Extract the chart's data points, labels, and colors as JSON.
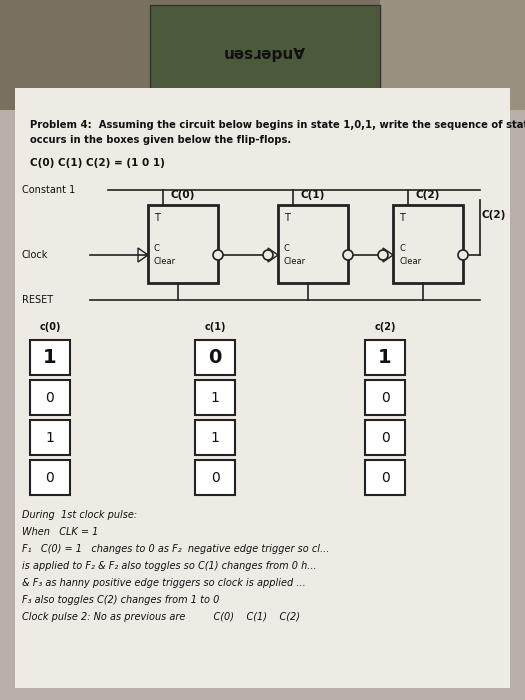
{
  "bg_color": "#b8b0a8",
  "paper_color": "#eeebe4",
  "title_line1": "Problem 4:  Assuming the circuit below begins in state 1,0,1, write the sequence of states that",
  "title_line2": "occurs in the boxes given below the flip-flops.",
  "state_label": "C(0) C(1) C(2) = (1 0 1)",
  "circuit_labels": {
    "constant1": "Constant 1",
    "clock": "Clock",
    "reset": "RESET",
    "ff0": "C(0)",
    "ff1": "C(1)",
    "ff2": "C(2)"
  },
  "c0_values": [
    "1",
    "0",
    "1",
    "0"
  ],
  "c1_values": [
    "0",
    "1",
    "1",
    "0"
  ],
  "c2_values": [
    "1",
    "0",
    "0",
    "0"
  ],
  "text_color": "#111111",
  "line_color": "#222222",
  "note_lines": [
    "During  1st clock pulse:",
    "When   CLK = 1",
    "F₁   C(0) = 1   changes to 0 as F₂  negative edge trigger so cl...",
    "is applied to F₂ & F₂ also toggles so C(1) changes from 0 h...",
    "& F₃ as hanny positive edge triggers so clock is applied ...",
    "F₃ also toggles C(2) changes from 1 to 0",
    "Clock pulse 2: No as previous are         C(0)    C(1)    C(2)"
  ]
}
